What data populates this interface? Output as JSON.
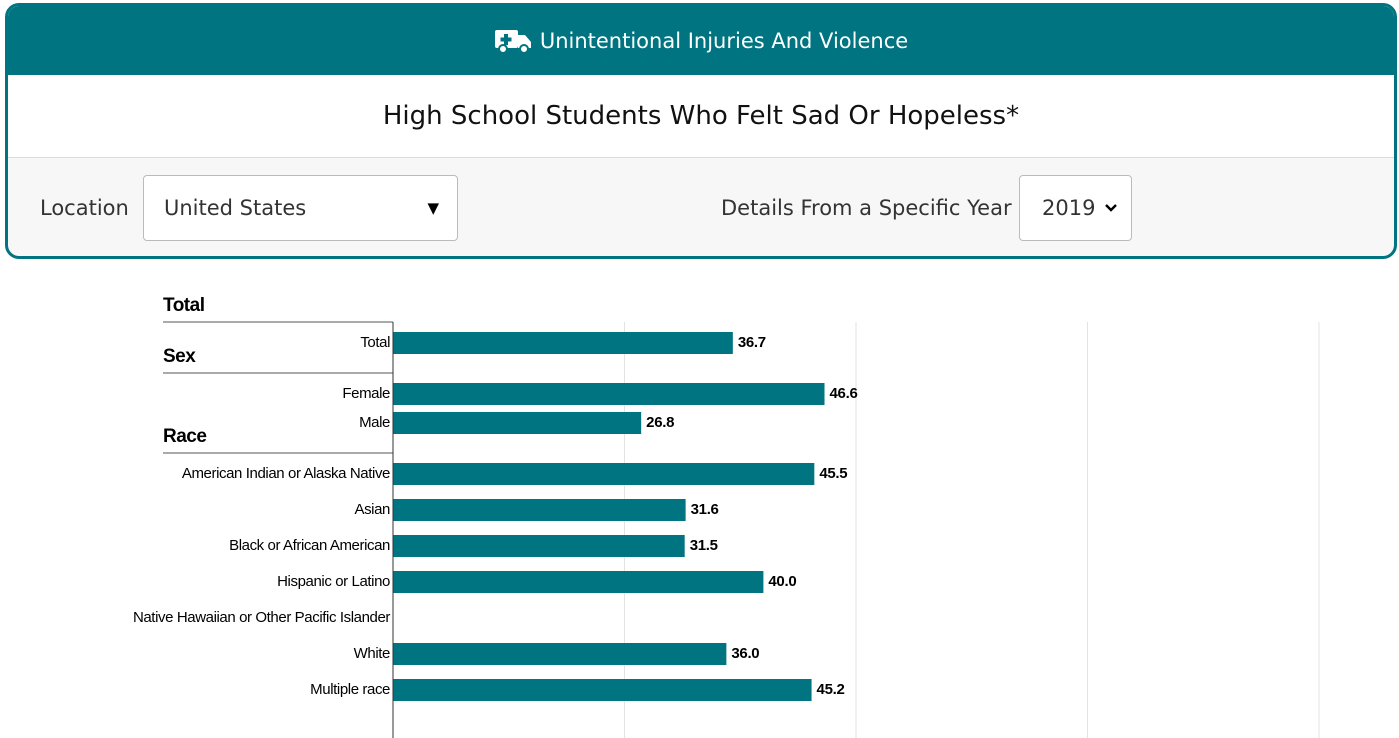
{
  "header": {
    "topic": "Unintentional Injuries And Violence",
    "title": "High School Students Who Felt Sad Or Hopeless*"
  },
  "controls": {
    "location_label": "Location",
    "location_value": "United States",
    "year_label": "Details From a Specific Year",
    "year_value": "2019"
  },
  "chart_data": {
    "type": "bar",
    "orientation": "horizontal",
    "color": "#007480",
    "groups": [
      {
        "name": "Total",
        "categories": [
          "Total"
        ],
        "values": [
          36.7
        ],
        "value_labels": [
          "36.7"
        ]
      },
      {
        "name": "Sex",
        "categories": [
          "Female",
          "Male"
        ],
        "values": [
          46.6,
          26.8
        ],
        "value_labels": [
          "46.6",
          "26.8"
        ]
      },
      {
        "name": "Race",
        "categories": [
          "American Indian or Alaska Native",
          "Asian",
          "Black or African American",
          "Hispanic or Latino",
          "Native Hawaiian or Other Pacific Islander",
          "White",
          "Multiple race"
        ],
        "values": [
          45.5,
          31.6,
          31.5,
          40,
          null,
          36,
          45.2
        ],
        "value_labels": [
          "45.5",
          "31.6",
          "31.5",
          "40.0",
          null,
          "36.0",
          "45.2"
        ]
      }
    ],
    "xlim": [
      0,
      100
    ],
    "xticks": [
      0,
      25,
      50,
      75,
      100
    ],
    "grid": true
  }
}
